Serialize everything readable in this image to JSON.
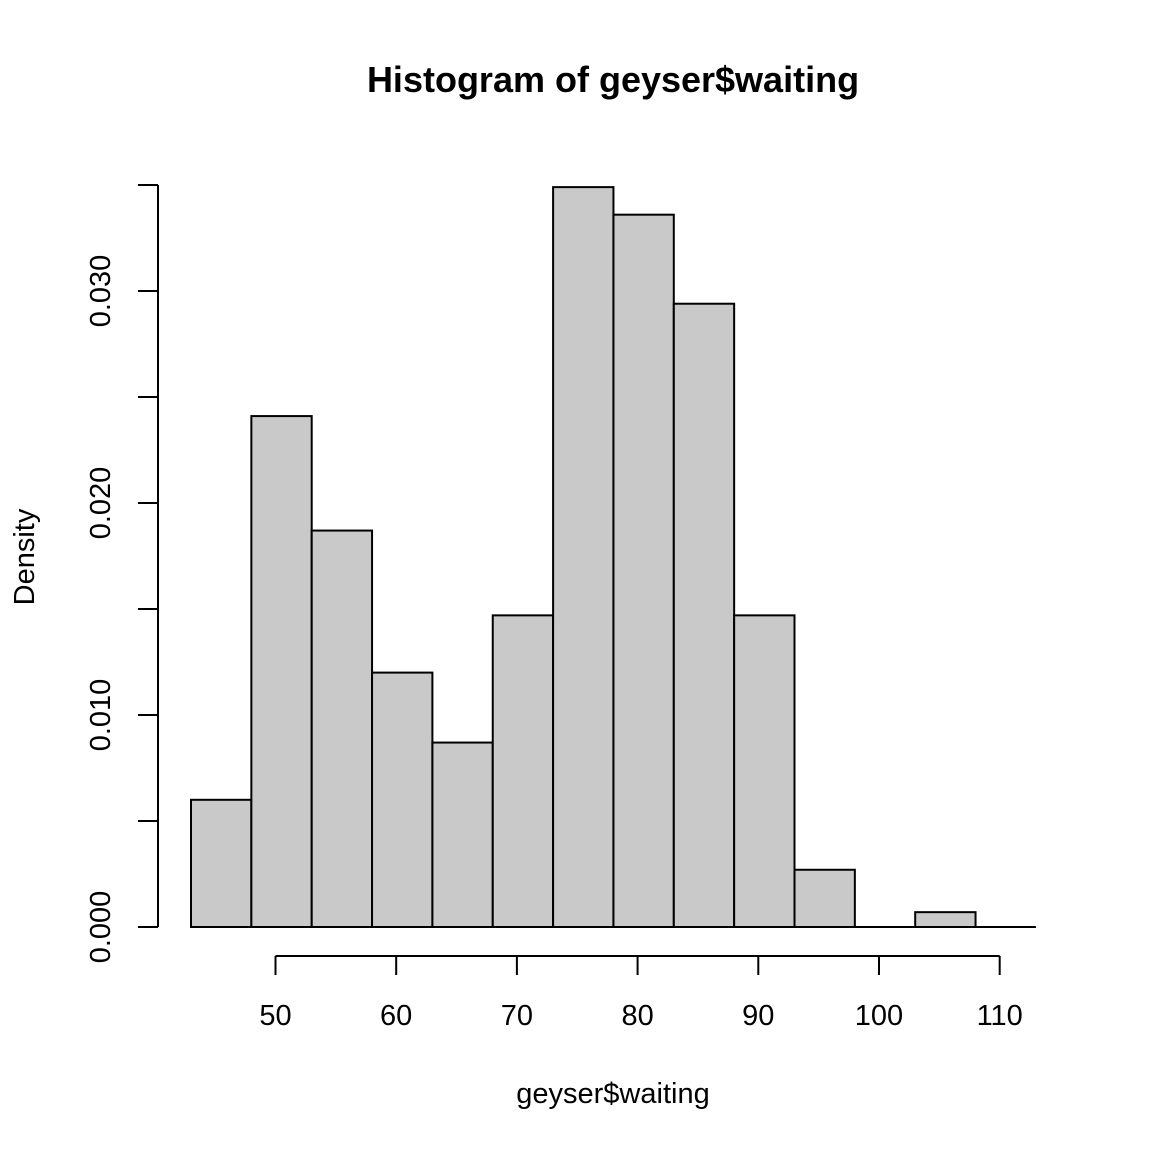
{
  "chart_data": {
    "type": "bar",
    "title": "Histogram of geyser$waiting",
    "xlabel": "geyser$waiting",
    "ylabel": "Density",
    "bins": [
      {
        "x0": 43,
        "x1": 48,
        "density": 0.006
      },
      {
        "x0": 48,
        "x1": 53,
        "density": 0.0241
      },
      {
        "x0": 53,
        "x1": 58,
        "density": 0.0187
      },
      {
        "x0": 58,
        "x1": 63,
        "density": 0.012
      },
      {
        "x0": 63,
        "x1": 68,
        "density": 0.0087
      },
      {
        "x0": 68,
        "x1": 73,
        "density": 0.0147
      },
      {
        "x0": 73,
        "x1": 78,
        "density": 0.0349
      },
      {
        "x0": 78,
        "x1": 83,
        "density": 0.0336
      },
      {
        "x0": 83,
        "x1": 88,
        "density": 0.0294
      },
      {
        "x0": 88,
        "x1": 93,
        "density": 0.0147
      },
      {
        "x0": 93,
        "x1": 98,
        "density": 0.0027
      },
      {
        "x0": 98,
        "x1": 103,
        "density": 0.0
      },
      {
        "x0": 103,
        "x1": 108,
        "density": 0.0007
      },
      {
        "x0": 108,
        "x1": 113,
        "density": 0.0
      }
    ],
    "xlim": [
      43,
      113
    ],
    "ylim": [
      0,
      0.035
    ],
    "x_ticks": [
      50,
      60,
      70,
      80,
      90,
      100,
      110
    ],
    "y_ticks": [
      0.0,
      0.005,
      0.01,
      0.015,
      0.02,
      0.025,
      0.03,
      0.035
    ],
    "y_tick_labels": [
      "0.000",
      "",
      "0.010",
      "",
      "0.020",
      "",
      "0.030",
      ""
    ],
    "x_tick_labels": [
      "50",
      "60",
      "70",
      "80",
      "90",
      "100",
      "110"
    ],
    "bar_color": "#c9c9c9",
    "grid": false
  }
}
